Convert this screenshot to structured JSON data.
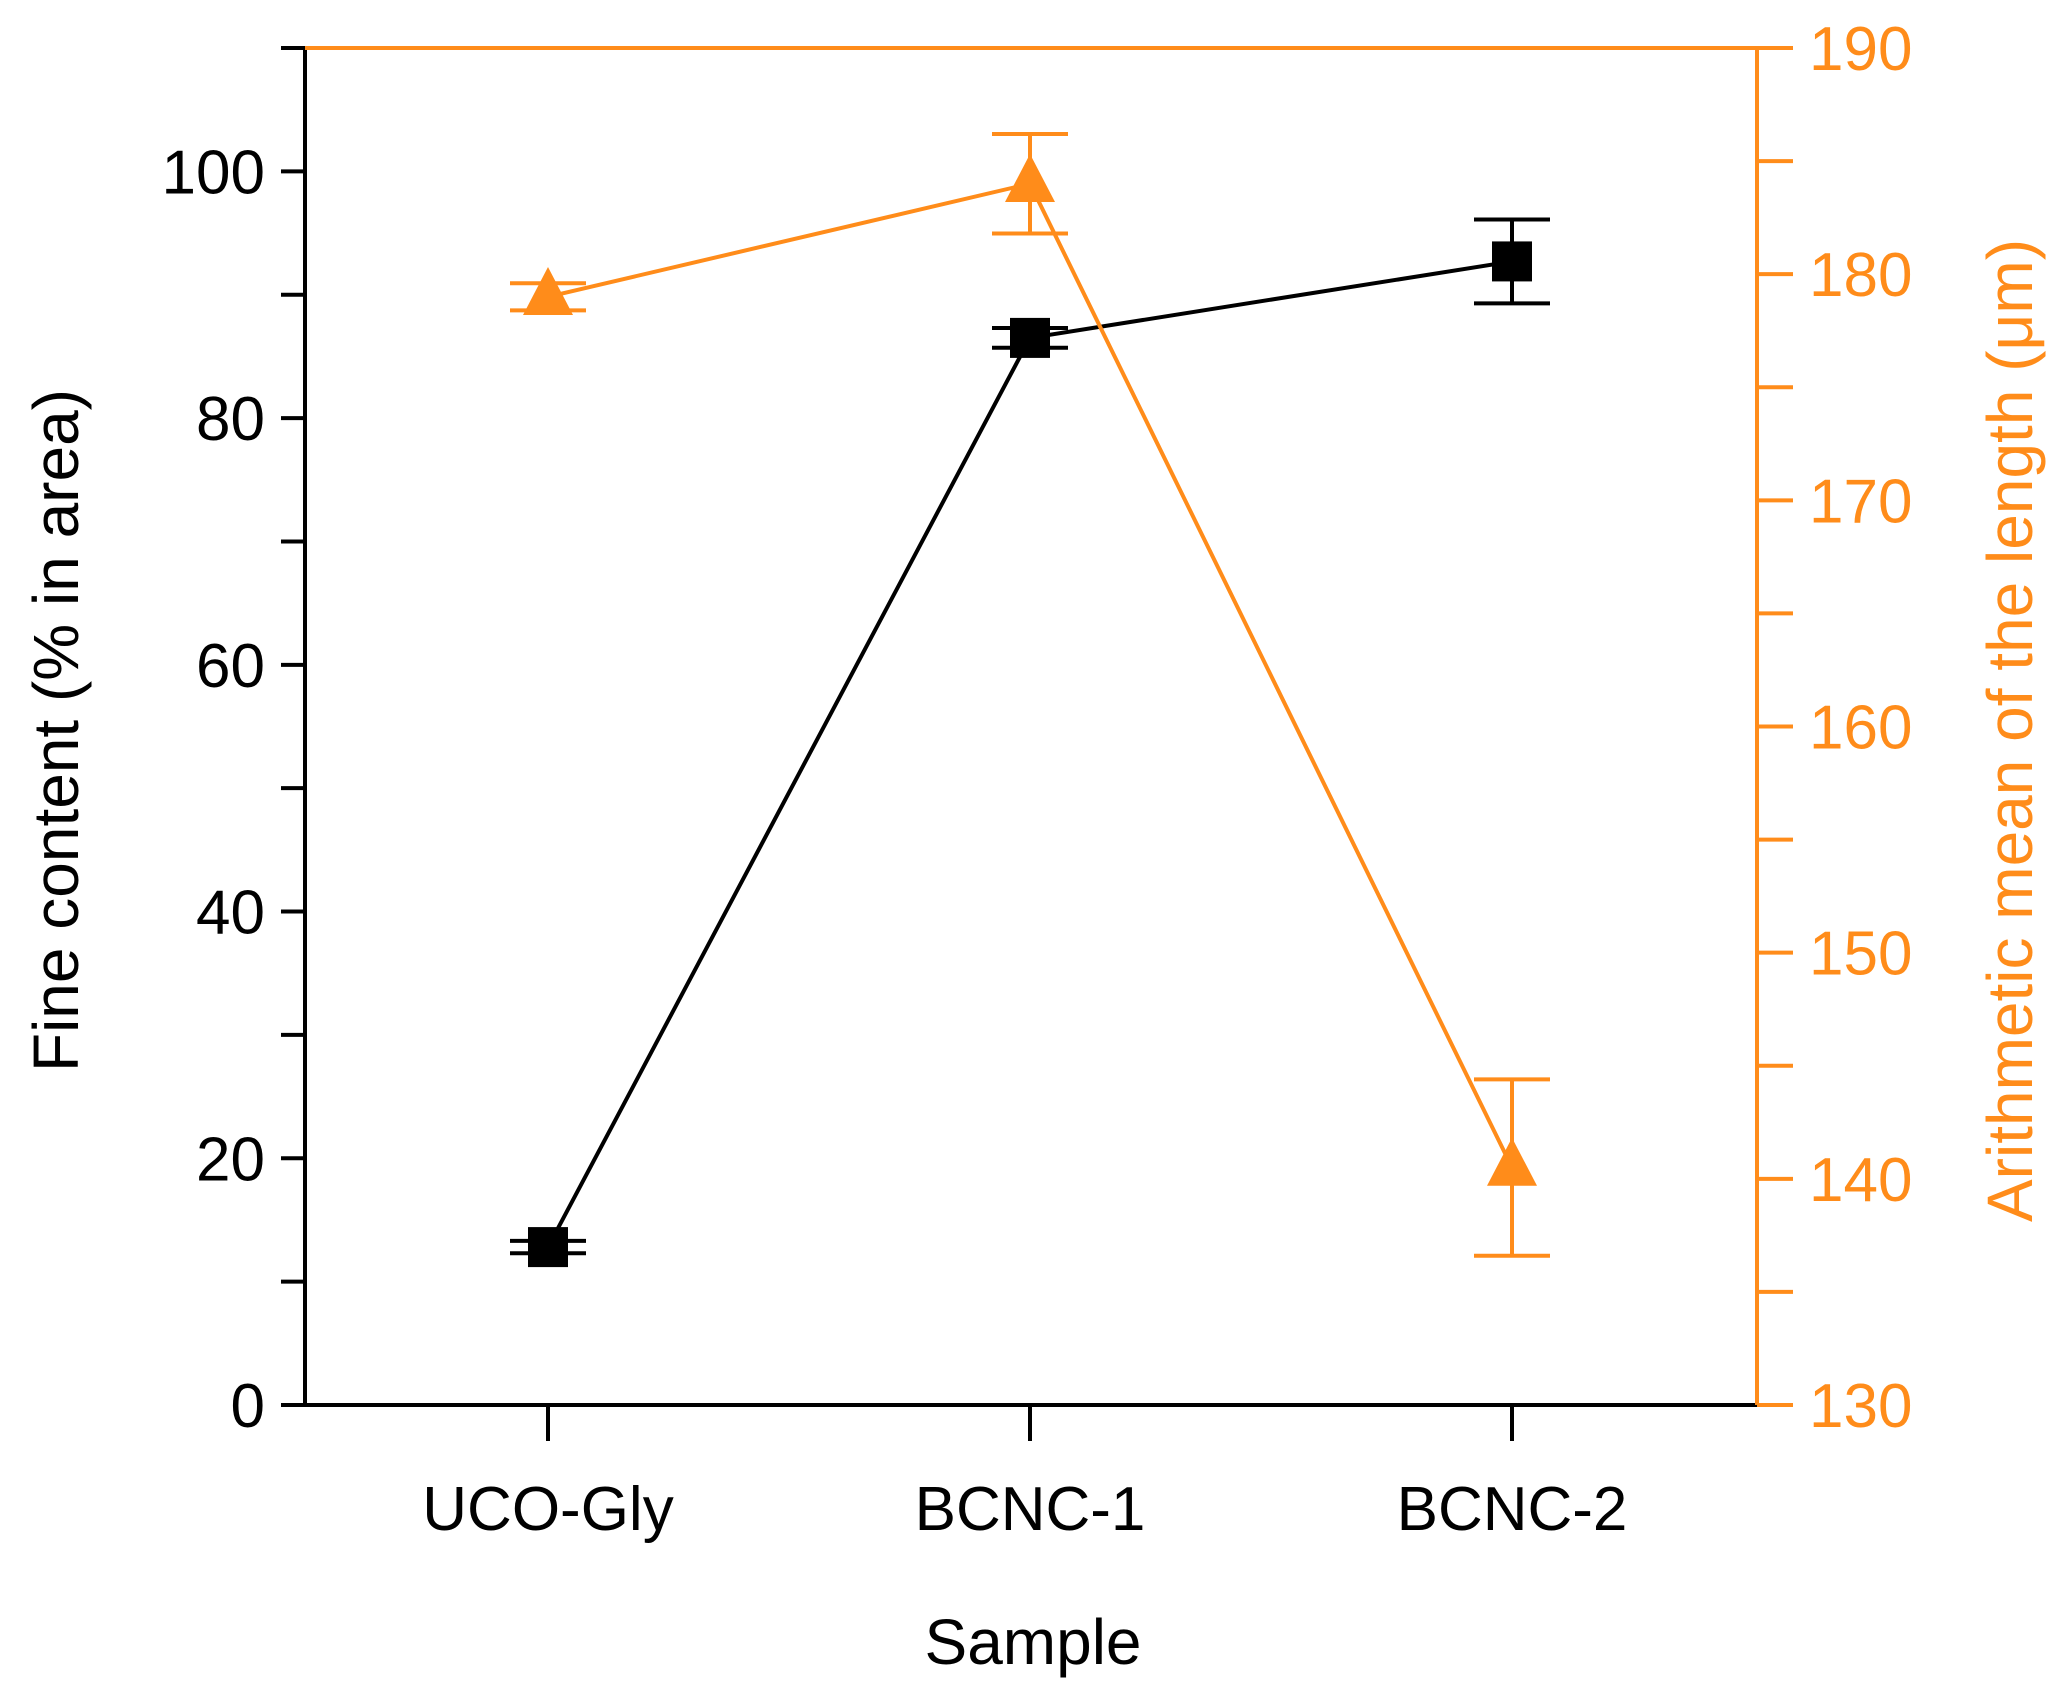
{
  "chart_data": {
    "type": "line",
    "xlabel": "Sample",
    "categories": [
      "UCO-Gly",
      "BCNC-1",
      "BCNC-2"
    ],
    "left_axis": {
      "label": "Fine content (% in area)",
      "ylim": [
        0,
        110
      ],
      "ticks": [
        0,
        20,
        40,
        60,
        80,
        100
      ],
      "color": "#000000"
    },
    "right_axis": {
      "label": "Arithmetic mean of the length (μm)",
      "ylim": [
        130,
        190
      ],
      "ticks": [
        130,
        140,
        150,
        160,
        170,
        180,
        190
      ],
      "color": "#FF8C1A"
    },
    "series": [
      {
        "axis": "left",
        "marker": "square",
        "color": "#000000",
        "values": [
          12.8,
          86.5,
          92.7
        ],
        "errors": [
          0.5,
          0.8,
          3.4
        ]
      },
      {
        "axis": "right",
        "marker": "triangle",
        "color": "#FF8C1A",
        "values": [
          179.0,
          184.0,
          140.5
        ],
        "errors": [
          0.6,
          2.2,
          3.9
        ]
      }
    ],
    "grid": false
  }
}
